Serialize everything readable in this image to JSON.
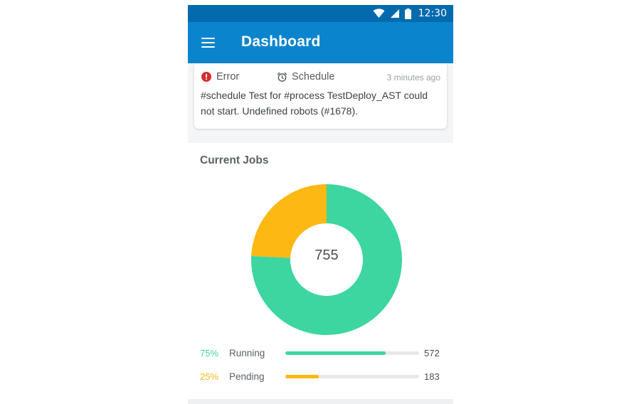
{
  "status_bar": {
    "time": "12:30",
    "icons": [
      "wifi-icon",
      "signal-icon",
      "battery-icon"
    ]
  },
  "app_bar": {
    "title": "Dashboard",
    "menu_icon": "hamburger-menu-icon"
  },
  "alert": {
    "type_label": "Error",
    "type_icon": "error-circle-icon",
    "source_label": "Schedule",
    "source_icon": "alarm-clock-icon",
    "time": "3 minutes ago",
    "message": "#schedule Test for #process TestDeploy_AST could not start. Undefined robots (#1678)."
  },
  "jobs": {
    "title": "Current Jobs",
    "total": "755",
    "rows": [
      {
        "pct_label": "75%",
        "name": "Running",
        "count": "572",
        "fraction": 0.75,
        "color": "#3dd6a0"
      },
      {
        "pct_label": "25%",
        "name": "Pending",
        "count": "183",
        "fraction": 0.25,
        "color": "#fdb813"
      }
    ]
  },
  "chart_data": {
    "type": "pie",
    "categories": [
      "Running",
      "Pending"
    ],
    "values": [
      572,
      183
    ],
    "colors": [
      "#3dd6a0",
      "#fdb813"
    ],
    "title": "Current Jobs",
    "center_label": "755"
  },
  "colors": {
    "app_bar": "#0a85cd",
    "status_bar": "#036aad",
    "error": "#d32f2f",
    "running": "#3dd6a0",
    "pending": "#fdb813"
  }
}
